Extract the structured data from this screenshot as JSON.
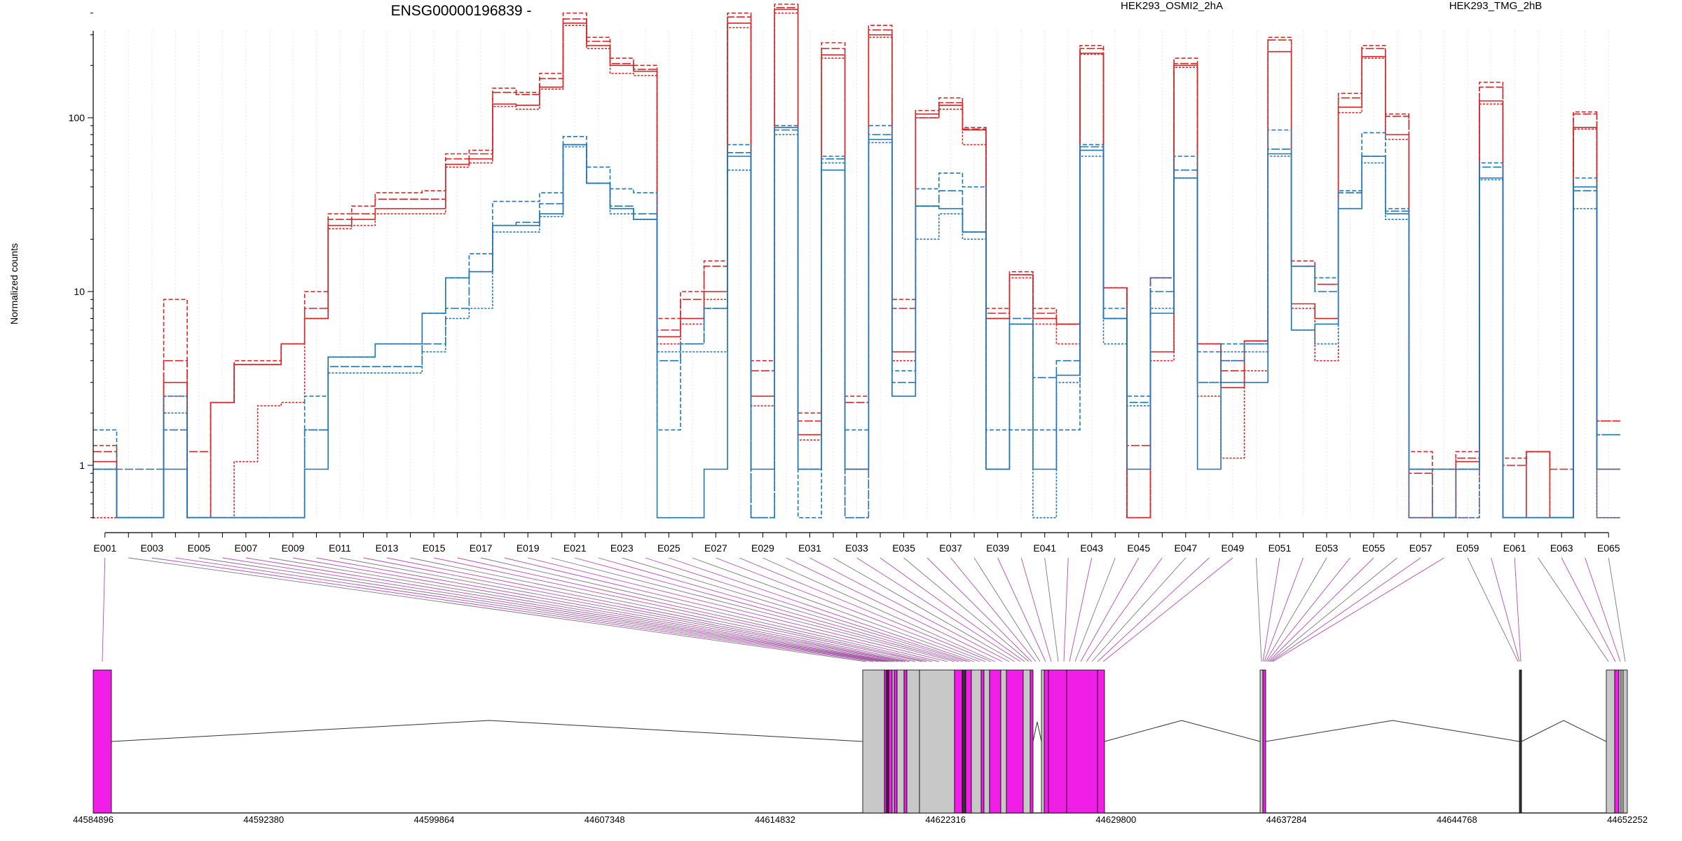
{
  "chart_data": {
    "type": "line",
    "title": "ENSG00000196839 -",
    "ylabel": "Normalized counts",
    "y_scale": "log",
    "ylim": [
      0.5,
      500
    ],
    "y_ticks": [
      {
        "value": 1,
        "label": "1"
      },
      {
        "value": 10,
        "label": "10"
      },
      {
        "value": 100,
        "label": "100"
      }
    ],
    "grid": "vertical, light dotted per exon bin",
    "legend_placement": "top",
    "categories": [
      "E001",
      "E002",
      "E003",
      "E004",
      "E005",
      "E006",
      "E007",
      "E008",
      "E009",
      "E010",
      "E011",
      "E012",
      "E013",
      "E014",
      "E015",
      "E016",
      "E017",
      "E018",
      "E019",
      "E020",
      "E021",
      "E022",
      "E023",
      "E024",
      "E025",
      "E026",
      "E027",
      "E028",
      "E029",
      "E030",
      "E031",
      "E032",
      "E033",
      "E034",
      "E035",
      "E036",
      "E037",
      "E038",
      "E039",
      "E040",
      "E041",
      "E042",
      "E043",
      "E044",
      "E045",
      "E046",
      "E047",
      "E048",
      "E049",
      "E050",
      "E051",
      "E052",
      "E053",
      "E054",
      "E055",
      "E056",
      "E057",
      "E058",
      "E059",
      "E060",
      "E061",
      "E062",
      "E063",
      "E064",
      "E065"
    ],
    "x_tick_labels": [
      "E001",
      "E003",
      "E005",
      "E007",
      "E009",
      "E011",
      "E013",
      "E015",
      "E017",
      "E019",
      "E021",
      "E023",
      "E025",
      "E027",
      "E029",
      "E031",
      "E033",
      "E035",
      "E037",
      "E039",
      "E041",
      "E043",
      "E045",
      "E047",
      "E049",
      "E051",
      "E053",
      "E055",
      "E057",
      "E059",
      "E061",
      "E063",
      "E065"
    ],
    "series": [
      {
        "name": "HEK293_OSMI2_2hA",
        "color": "#d62728",
        "dash": "6,3",
        "values": [
          1.3,
          0.5,
          0.5,
          9,
          0.5,
          2.3,
          4,
          4,
          5,
          10,
          28,
          31,
          37,
          37,
          38,
          62,
          65,
          148,
          140,
          180,
          400,
          290,
          220,
          200,
          7,
          10,
          15,
          400,
          4,
          450,
          2,
          270,
          2.5,
          340,
          9,
          110,
          130,
          88,
          8,
          13,
          8,
          6.5,
          260,
          10.5,
          0.5,
          12,
          220,
          5,
          4,
          5.2,
          290,
          15,
          11,
          138,
          260,
          105,
          1.2,
          0.5,
          1.2,
          160,
          1.1,
          1.2,
          0.5,
          108,
          1.8
        ]
      },
      {
        "name": "HEK293_OSMI2_2hA",
        "color": "#d62728",
        "dash": "12,3",
        "values": [
          1.2,
          0.5,
          0.5,
          4,
          1.2,
          2.3,
          3.8,
          3.8,
          5,
          8,
          26,
          28,
          34,
          34,
          34,
          58,
          62,
          140,
          136,
          168,
          370,
          275,
          205,
          190,
          6,
          9,
          14,
          380,
          3.5,
          430,
          1.8,
          250,
          2.3,
          320,
          8,
          100,
          122,
          86,
          7.5,
          12.5,
          7.5,
          6.5,
          250,
          10.5,
          1.3,
          12,
          205,
          5,
          3.5,
          5.2,
          280,
          14,
          11,
          130,
          250,
          102,
          0.9,
          0.5,
          1.1,
          150,
          1,
          1.2,
          0.95,
          105,
          1.8
        ]
      },
      {
        "name": "HEK293_OSMI2_2hA",
        "color": "#d62728",
        "dash": "",
        "values": [
          1.05,
          0.5,
          0.5,
          3,
          0.5,
          2.3,
          3.8,
          3.8,
          5,
          7,
          24,
          26,
          30,
          30,
          30,
          54,
          58,
          120,
          118,
          150,
          350,
          260,
          200,
          185,
          5.5,
          7,
          10,
          350,
          2.5,
          420,
          1.5,
          230,
          0.95,
          300,
          4.5,
          105,
          118,
          85,
          7,
          12.5,
          7,
          6.5,
          235,
          10.5,
          0.5,
          4.5,
          200,
          5,
          2.8,
          5.2,
          240,
          8.5,
          7,
          115,
          225,
          80,
          0.5,
          0.5,
          1.05,
          125,
          0.5,
          1.2,
          0.5,
          88,
          0.95
        ]
      },
      {
        "name": "HEK293_OSMI2_2hA",
        "color": "#d62728",
        "dash": "3,2",
        "values": [
          0.5,
          0.5,
          0.5,
          2.5,
          0.5,
          0.5,
          1.05,
          2.2,
          2.3,
          7,
          23,
          24,
          28,
          28,
          28,
          52,
          55,
          116,
          112,
          146,
          340,
          250,
          180,
          175,
          5,
          6.5,
          9,
          330,
          2.2,
          400,
          1.4,
          220,
          0.5,
          290,
          4,
          100,
          112,
          70,
          7,
          12,
          6.5,
          5,
          232,
          7,
          0.5,
          4,
          195,
          2.5,
          1.1,
          3.5,
          240,
          8,
          4,
          107,
          220,
          75,
          0.5,
          0.5,
          0.5,
          120,
          0.5,
          0.5,
          0.5,
          86,
          0.5
        ]
      },
      {
        "name": "HEK293_TMG_2hB",
        "color": "#1f77b4",
        "dash": "6,3",
        "values": [
          1.6,
          0.5,
          0.5,
          2.5,
          0.5,
          0.5,
          0.5,
          0.5,
          0.5,
          2.5,
          4.2,
          4.2,
          5,
          5,
          7.5,
          12,
          16.5,
          33,
          33,
          37,
          78,
          52,
          39,
          37,
          1.6,
          5,
          8,
          70,
          0.5,
          90,
          0.5,
          60,
          1.6,
          90,
          3.5,
          39,
          48,
          40,
          1.6,
          1.6,
          1.6,
          1.6,
          70,
          8,
          2.5,
          12,
          60,
          4.5,
          5,
          5,
          85,
          14,
          12,
          38,
          82,
          30,
          0.5,
          0.5,
          0.5,
          55,
          0.5,
          0.5,
          0.5,
          45,
          1.5
        ]
      },
      {
        "name": "HEK293_TMG_2hB",
        "color": "#1f77b4",
        "dash": "12,3",
        "values": [
          0.95,
          0.95,
          0.95,
          1.6,
          0.5,
          0.5,
          0.5,
          0.5,
          0.5,
          1.6,
          3.7,
          3.7,
          3.7,
          3.7,
          5,
          8,
          13,
          24,
          25,
          32,
          70,
          42,
          31,
          28,
          4,
          5,
          8,
          63,
          0.5,
          85,
          0.95,
          58,
          0.5,
          80,
          3,
          31,
          38,
          22,
          0.95,
          7,
          3.2,
          4,
          68,
          7,
          2.3,
          10,
          50,
          3,
          4,
          5,
          66,
          14,
          10,
          37,
          60,
          29,
          0.95,
          0.95,
          0.95,
          52,
          0.5,
          0.5,
          0.5,
          38,
          1.5
        ]
      },
      {
        "name": "HEK293_TMG_2hB",
        "color": "#1f77b4",
        "dash": "",
        "values": [
          0.95,
          0.5,
          0.5,
          0.95,
          0.5,
          0.5,
          0.5,
          0.5,
          0.5,
          0.95,
          4.2,
          4.2,
          5,
          5,
          7.5,
          12,
          13,
          24,
          24,
          28,
          70,
          42,
          30,
          26,
          0.5,
          0.5,
          0.95,
          60,
          0.95,
          88,
          0.95,
          50,
          0.95,
          75,
          2.5,
          31,
          30,
          22,
          0.95,
          6.5,
          0.95,
          3.3,
          65,
          7,
          0.95,
          7.5,
          45,
          0.95,
          3,
          3,
          62,
          6,
          6.5,
          30,
          60,
          28,
          0.95,
          0.95,
          0.95,
          45,
          0.5,
          0.5,
          0.5,
          40,
          0.95
        ]
      },
      {
        "name": "HEK293_TMG_2hB",
        "color": "#1f77b4",
        "dash": "3,2",
        "values": [
          0.95,
          0.5,
          0.5,
          2,
          0.5,
          0.5,
          0.5,
          0.5,
          0.5,
          1.6,
          3.4,
          3.4,
          3.4,
          3.4,
          4.5,
          7,
          8,
          22,
          22,
          27,
          68,
          42,
          28,
          26,
          4.5,
          4.5,
          4.5,
          50,
          0.5,
          80,
          0.95,
          55,
          0.95,
          72,
          2.5,
          20,
          28,
          20,
          0.95,
          6.5,
          0.5,
          3,
          60,
          5,
          2.2,
          8,
          45,
          3,
          4.5,
          4.5,
          60,
          6,
          5,
          30,
          55,
          26,
          0.95,
          0.5,
          0.95,
          44,
          0.5,
          0.5,
          0.5,
          30,
          0.5
        ]
      }
    ],
    "legend": [
      {
        "label": "HEK293_OSMI2_2hA",
        "color": "#d62728"
      },
      {
        "label": "HEK293_TMG_2hB",
        "color": "#1f77b4"
      }
    ],
    "gene_model": {
      "coord_labels": [
        "44584896",
        "44592380",
        "44599864",
        "44607348",
        "44614832",
        "44622316",
        "44629800",
        "44637284",
        "44644768",
        "44652252"
      ],
      "genome_start": 44584896,
      "genome_end": 44652252,
      "exon_fill": "#f01ee6",
      "non_exon_fill": "#c8c8c8"
    }
  }
}
